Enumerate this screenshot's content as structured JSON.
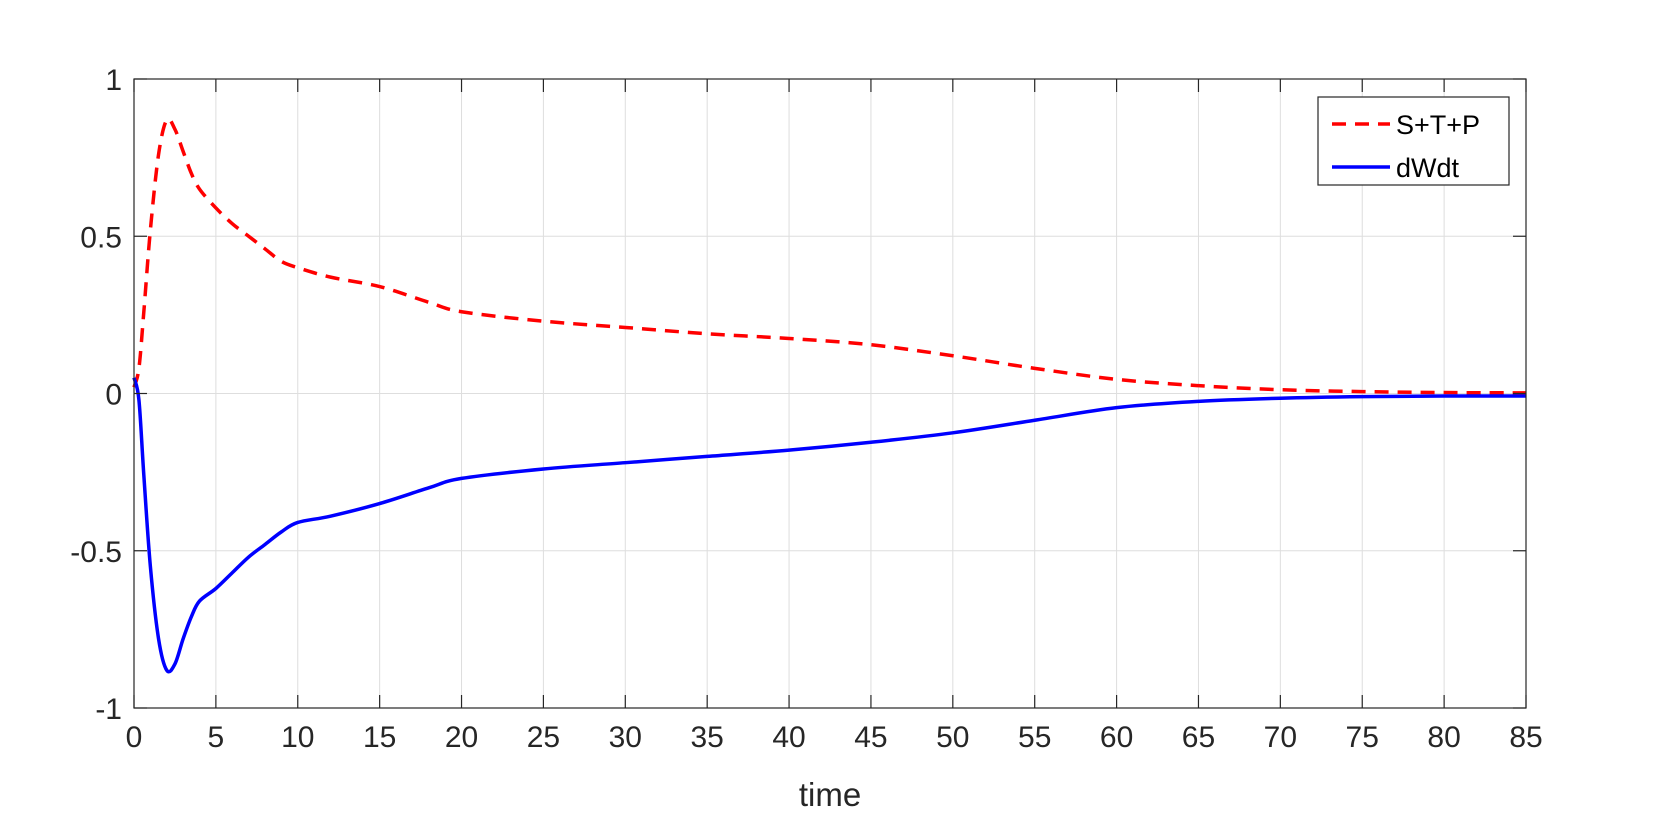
{
  "chart_data": {
    "type": "line",
    "title": "",
    "xlabel": "time",
    "ylabel": "",
    "xlim": [
      0,
      85
    ],
    "ylim": [
      -1,
      1
    ],
    "xticks": [
      0,
      5,
      10,
      15,
      20,
      25,
      30,
      35,
      40,
      45,
      50,
      55,
      60,
      65,
      70,
      75,
      80,
      85
    ],
    "xtick_labels": [
      "0",
      "5",
      "10",
      "15",
      "20",
      "25",
      "30",
      "35",
      "40",
      "45",
      "50",
      "55",
      "60",
      "65",
      "70",
      "75",
      "80",
      "85"
    ],
    "yticks": [
      -1,
      -0.5,
      0,
      0.5,
      1
    ],
    "ytick_labels": [
      "-1",
      "-0.5",
      "0",
      "0.5",
      "1"
    ],
    "grid": true,
    "legend_position": "top-right",
    "series": [
      {
        "name": "S+T+P",
        "color": "#ff0000",
        "style": "dashed",
        "x": [
          0,
          0.3,
          0.6,
          1.0,
          1.5,
          2.0,
          2.5,
          3.0,
          3.5,
          4.0,
          5.0,
          6.0,
          7.0,
          8.0,
          9.0,
          10.0,
          12.0,
          15.0,
          18.0,
          20.0,
          25.0,
          30.0,
          35.0,
          40.0,
          45.0,
          50.0,
          55.0,
          60.0,
          65.0,
          70.0,
          75.0,
          80.0,
          85.0
        ],
        "y": [
          0.02,
          0.08,
          0.26,
          0.52,
          0.76,
          0.87,
          0.84,
          0.77,
          0.7,
          0.65,
          0.59,
          0.54,
          0.5,
          0.46,
          0.42,
          0.4,
          0.37,
          0.34,
          0.29,
          0.26,
          0.23,
          0.21,
          0.19,
          0.175,
          0.155,
          0.12,
          0.08,
          0.045,
          0.025,
          0.012,
          0.006,
          0.003,
          0.002
        ]
      },
      {
        "name": "dWdt",
        "color": "#0000ff",
        "style": "solid",
        "x": [
          0,
          0.3,
          0.6,
          1.0,
          1.5,
          2.0,
          2.5,
          3.0,
          3.5,
          4.0,
          5.0,
          6.0,
          7.0,
          8.0,
          9.0,
          10.0,
          12.0,
          15.0,
          18.0,
          20.0,
          25.0,
          30.0,
          35.0,
          40.0,
          45.0,
          50.0,
          55.0,
          60.0,
          65.0,
          70.0,
          75.0,
          80.0,
          85.0
        ],
        "y": [
          0.05,
          -0.02,
          -0.26,
          -0.55,
          -0.78,
          -0.88,
          -0.86,
          -0.78,
          -0.71,
          -0.66,
          -0.62,
          -0.57,
          -0.52,
          -0.48,
          -0.44,
          -0.41,
          -0.39,
          -0.35,
          -0.3,
          -0.27,
          -0.24,
          -0.22,
          -0.2,
          -0.18,
          -0.155,
          -0.125,
          -0.085,
          -0.045,
          -0.025,
          -0.015,
          -0.01,
          -0.008,
          -0.008
        ]
      }
    ]
  }
}
